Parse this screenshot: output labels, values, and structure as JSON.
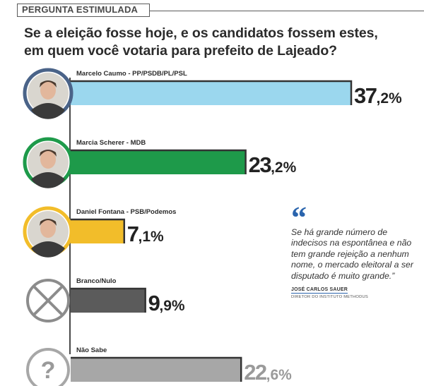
{
  "header": {
    "tag": "PERGUNTA ESTIMULADA",
    "title_line1": "Se a eleição fosse hoje, e os candidatos fossem estes,",
    "title_line2": "em quem você votaria para prefeito de Lajeado?"
  },
  "chart_data": {
    "type": "bar",
    "orientation": "horizontal",
    "title": "Se a eleição fosse hoje, e os candidatos fossem estes, em quem você votaria para prefeito de Lajeado?",
    "categories": [
      "Marcelo Caumo - PP/PSDB/PL/PSL",
      "Marcia Scherer - MDB",
      "Daniel Fontana - PSB/Podemos",
      "Branco/Nulo",
      "Não Sabe"
    ],
    "values": [
      37.2,
      23.2,
      7.1,
      9.9,
      22.6
    ],
    "value_labels": [
      "37,2%",
      "23,2%",
      "7,1%",
      "9,9%",
      "22,6%"
    ],
    "unit": "%",
    "colors": [
      "#9bd7ee",
      "#1e9a4a",
      "#f2bd2a",
      "#5b5b5b",
      "#a7a7a7"
    ],
    "ring_colors": [
      "#4a6388",
      "#1e9a4a",
      "#f2bd2a",
      "#8c8c8c",
      "#a7a7a7"
    ],
    "icons": [
      "candidate-photo",
      "candidate-photo",
      "candidate-photo",
      "x-circle-icon",
      "question-mark-icon"
    ],
    "question_glyph": "?",
    "legend": "none",
    "grid": false
  },
  "quote": {
    "mark": "“",
    "text": "Se há grande número de indecisos na espontânea e não tem grande rejeição a nenhum nome, o mercado eleitoral a ser disputado é muito grande.”",
    "author": "JOSÉ CARLOS SAUER",
    "role": "DIRETOR DO INSTITUTO METHODUS",
    "color": "#2a64ad"
  }
}
